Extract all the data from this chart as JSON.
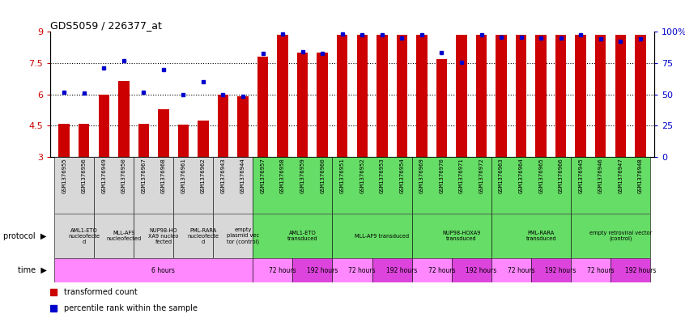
{
  "title": "GDS5059 / 226377_at",
  "samples": [
    "GSM1376955",
    "GSM1376956",
    "GSM1376949",
    "GSM1376950",
    "GSM1376967",
    "GSM1376968",
    "GSM1376961",
    "GSM1376962",
    "GSM1376943",
    "GSM1376944",
    "GSM1376957",
    "GSM1376958",
    "GSM1376959",
    "GSM1376960",
    "GSM1376951",
    "GSM1376952",
    "GSM1376953",
    "GSM1376954",
    "GSM1376969",
    "GSM1376970",
    "GSM1376971",
    "GSM1376972",
    "GSM1376963",
    "GSM1376964",
    "GSM1376965",
    "GSM1376966",
    "GSM1376945",
    "GSM1376946",
    "GSM1376947",
    "GSM1376948"
  ],
  "red_values": [
    4.6,
    4.6,
    6.0,
    6.65,
    4.6,
    5.3,
    4.55,
    4.75,
    6.0,
    5.9,
    7.8,
    8.85,
    8.0,
    8.0,
    8.85,
    8.85,
    8.85,
    8.85,
    8.85,
    7.7,
    8.85,
    8.85,
    8.85,
    8.85,
    8.85,
    8.85,
    8.85,
    8.85,
    8.85,
    8.85
  ],
  "blue_values": [
    6.1,
    6.05,
    7.25,
    7.6,
    6.1,
    7.2,
    6.0,
    6.6,
    6.0,
    5.9,
    7.95,
    8.9,
    8.05,
    7.95,
    8.9,
    8.85,
    8.85,
    8.7,
    8.85,
    8.0,
    7.55,
    8.85,
    8.75,
    8.75,
    8.7,
    8.7,
    8.85,
    8.65,
    8.55,
    8.65
  ],
  "ylim": [
    3,
    9
  ],
  "yticks": [
    3,
    4.5,
    6.0,
    7.5,
    9
  ],
  "ytick_labels": [
    "3",
    "4.5",
    "6",
    "7.5",
    "9"
  ],
  "hlines": [
    4.5,
    6.0,
    7.5
  ],
  "right_yticks": [
    0,
    25,
    50,
    75,
    100
  ],
  "right_ylim": [
    0,
    100
  ],
  "bar_color": "#cc0000",
  "blue_color": "#0000cc",
  "protocol_groups": [
    {
      "label": "AML1-ETO\nnucleofecte\nd",
      "start": 0,
      "end": 2,
      "bg": "#d8d8d8"
    },
    {
      "label": "MLL-AF9\nnucleofected",
      "start": 2,
      "end": 4,
      "bg": "#d8d8d8"
    },
    {
      "label": "NUP98-HO\nXA9 nucleo\nfected",
      "start": 4,
      "end": 6,
      "bg": "#d8d8d8"
    },
    {
      "label": "PML-RARA\nnucleofecte\nd",
      "start": 6,
      "end": 8,
      "bg": "#d8d8d8"
    },
    {
      "label": "empty\nplasmid vec\ntor (control)",
      "start": 8,
      "end": 10,
      "bg": "#d8d8d8"
    },
    {
      "label": "AML1-ETO\ntransduced",
      "start": 10,
      "end": 14,
      "bg": "#66dd66"
    },
    {
      "label": "MLL-AF9 transduced",
      "start": 14,
      "end": 18,
      "bg": "#66dd66"
    },
    {
      "label": "NUP98-HOXA9\ntransduced",
      "start": 18,
      "end": 22,
      "bg": "#66dd66"
    },
    {
      "label": "PML-RARA\ntransduced",
      "start": 22,
      "end": 26,
      "bg": "#66dd66"
    },
    {
      "label": "empty retroviral vector\n(control)",
      "start": 26,
      "end": 30,
      "bg": "#66dd66"
    }
  ],
  "time_groups": [
    {
      "label": "6 hours",
      "start": 0,
      "end": 10,
      "bg": "#ff88ff"
    },
    {
      "label": "72 hours",
      "start": 10,
      "end": 12,
      "bg": "#ff88ff"
    },
    {
      "label": "192 hours",
      "start": 12,
      "end": 14,
      "bg": "#dd44dd"
    },
    {
      "label": "72 hours",
      "start": 14,
      "end": 16,
      "bg": "#ff88ff"
    },
    {
      "label": "192 hours",
      "start": 16,
      "end": 18,
      "bg": "#dd44dd"
    },
    {
      "label": "72 hours",
      "start": 18,
      "end": 20,
      "bg": "#ff88ff"
    },
    {
      "label": "192 hours",
      "start": 20,
      "end": 22,
      "bg": "#dd44dd"
    },
    {
      "label": "72 hours",
      "start": 22,
      "end": 24,
      "bg": "#ff88ff"
    },
    {
      "label": "192 hours",
      "start": 24,
      "end": 26,
      "bg": "#dd44dd"
    },
    {
      "label": "72 hours",
      "start": 26,
      "end": 28,
      "bg": "#ff88ff"
    },
    {
      "label": "192 hours",
      "start": 28,
      "end": 30,
      "bg": "#dd44dd"
    }
  ],
  "legend_items": [
    {
      "label": "transformed count",
      "color": "#cc0000"
    },
    {
      "label": "percentile rank within the sample",
      "color": "#0000cc"
    }
  ],
  "fig_width": 8.46,
  "fig_height": 3.93,
  "dpi": 100
}
